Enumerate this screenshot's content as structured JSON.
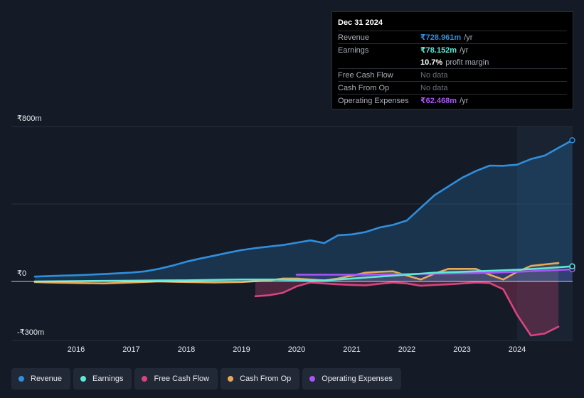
{
  "tooltip": {
    "date": "Dec 31 2024",
    "rows": [
      {
        "label": "Revenue",
        "value": "₹728.961m",
        "unit": "/yr",
        "color": "#2f8fde"
      },
      {
        "label": "Earnings",
        "value": "₹78.152m",
        "unit": "/yr",
        "color": "#5ee8d8"
      },
      {
        "label": "",
        "value": "10.7%",
        "unit": "profit margin",
        "color": "#ffffff"
      },
      {
        "label": "Free Cash Flow",
        "value": "No data",
        "unit": "",
        "color": "#6a707b"
      },
      {
        "label": "Cash From Op",
        "value": "No data",
        "unit": "",
        "color": "#6a707b"
      },
      {
        "label": "Operating Expenses",
        "value": "₹62.468m",
        "unit": "/yr",
        "color": "#a855f7"
      }
    ]
  },
  "legend": [
    {
      "label": "Revenue",
      "color": "#2f8fde"
    },
    {
      "label": "Earnings",
      "color": "#5ee8d8"
    },
    {
      "label": "Free Cash Flow",
      "color": "#d8457e"
    },
    {
      "label": "Cash From Op",
      "color": "#e8a85a"
    },
    {
      "label": "Operating Expenses",
      "color": "#a855f7"
    }
  ],
  "chart_data": {
    "type": "line",
    "title": "",
    "xlabel": "",
    "ylabel": "",
    "currency": "₹",
    "ylim": [
      -300,
      800
    ],
    "ytick_labels": [
      "₹800m",
      "₹0",
      "-₹300m"
    ],
    "xticks": [
      2016,
      2017,
      2018,
      2019,
      2020,
      2021,
      2022,
      2023,
      2024
    ],
    "xlim": [
      2015.2,
      2025.0
    ],
    "forecast_shade_start": 2024.0,
    "series": [
      {
        "name": "Revenue",
        "color": "#2f8fde",
        "fill": true,
        "x": [
          2015.25,
          2015.5,
          2015.75,
          2016.0,
          2016.25,
          2016.5,
          2016.75,
          2017.0,
          2017.25,
          2017.5,
          2017.75,
          2018.0,
          2018.25,
          2018.5,
          2018.75,
          2019.0,
          2019.25,
          2019.5,
          2019.75,
          2020.0,
          2020.25,
          2020.5,
          2020.75,
          2021.0,
          2021.25,
          2021.5,
          2021.75,
          2022.0,
          2022.25,
          2022.5,
          2022.75,
          2023.0,
          2023.25,
          2023.5,
          2023.75,
          2024.0,
          2024.25,
          2024.5,
          2024.75,
          2025.0
        ],
        "values": [
          25,
          28,
          30,
          32,
          35,
          38,
          42,
          46,
          52,
          65,
          82,
          102,
          118,
          133,
          148,
          162,
          172,
          180,
          188,
          200,
          212,
          198,
          238,
          243,
          255,
          278,
          292,
          315,
          380,
          445,
          490,
          535,
          570,
          598,
          597,
          603,
          632,
          650,
          690,
          728.961
        ]
      },
      {
        "name": "Earnings",
        "color": "#5ee8d8",
        "fill": false,
        "x": [
          2015.25,
          2016.0,
          2016.5,
          2017.0,
          2017.5,
          2018.0,
          2018.5,
          2019.0,
          2019.5,
          2020.0,
          2020.5,
          2021.0,
          2021.5,
          2022.0,
          2022.5,
          2023.0,
          2023.5,
          2024.0,
          2024.5,
          2025.0
        ],
        "values": [
          0,
          2,
          3,
          4,
          5,
          6,
          8,
          10,
          10,
          8,
          6,
          15,
          25,
          35,
          45,
          50,
          55,
          60,
          68,
          78.152
        ]
      },
      {
        "name": "Free Cash Flow",
        "color": "#d8457e",
        "fill": true,
        "x": [
          2019.25,
          2019.5,
          2019.75,
          2020.0,
          2020.25,
          2020.5,
          2020.75,
          2021.0,
          2021.25,
          2021.5,
          2021.75,
          2022.0,
          2022.25,
          2022.5,
          2022.75,
          2023.0,
          2023.25,
          2023.5,
          2023.75,
          2024.0,
          2024.25,
          2024.5,
          2024.75
        ],
        "values": [
          -75,
          -70,
          -58,
          -25,
          -5,
          -10,
          -15,
          -18,
          -20,
          -12,
          -5,
          -10,
          -22,
          -18,
          -15,
          -10,
          -5,
          -8,
          -40,
          -170,
          -275,
          -265,
          -230
        ]
      },
      {
        "name": "Cash From Op",
        "color": "#e8a85a",
        "fill": true,
        "x": [
          2015.25,
          2015.5,
          2016.0,
          2016.5,
          2017.0,
          2017.5,
          2018.0,
          2018.5,
          2019.0,
          2019.5,
          2019.75,
          2020.0,
          2020.25,
          2020.5,
          2020.75,
          2021.0,
          2021.25,
          2021.5,
          2021.75,
          2022.0,
          2022.25,
          2022.5,
          2022.75,
          2023.0,
          2023.25,
          2023.5,
          2023.75,
          2024.0,
          2024.25,
          2024.5,
          2024.75
        ],
        "values": [
          -3,
          -5,
          -8,
          -10,
          -5,
          0,
          -3,
          -5,
          -3,
          5,
          15,
          15,
          10,
          5,
          15,
          30,
          45,
          50,
          52,
          30,
          10,
          40,
          65,
          65,
          65,
          35,
          10,
          50,
          80,
          88,
          95
        ]
      },
      {
        "name": "Operating Expenses",
        "color": "#a855f7",
        "fill": true,
        "x": [
          2020.0,
          2020.5,
          2021.0,
          2021.5,
          2022.0,
          2022.5,
          2023.0,
          2023.5,
          2024.0,
          2024.5,
          2025.0
        ],
        "values": [
          35,
          35,
          35,
          36,
          38,
          40,
          42,
          45,
          50,
          56,
          62.468
        ]
      }
    ]
  }
}
